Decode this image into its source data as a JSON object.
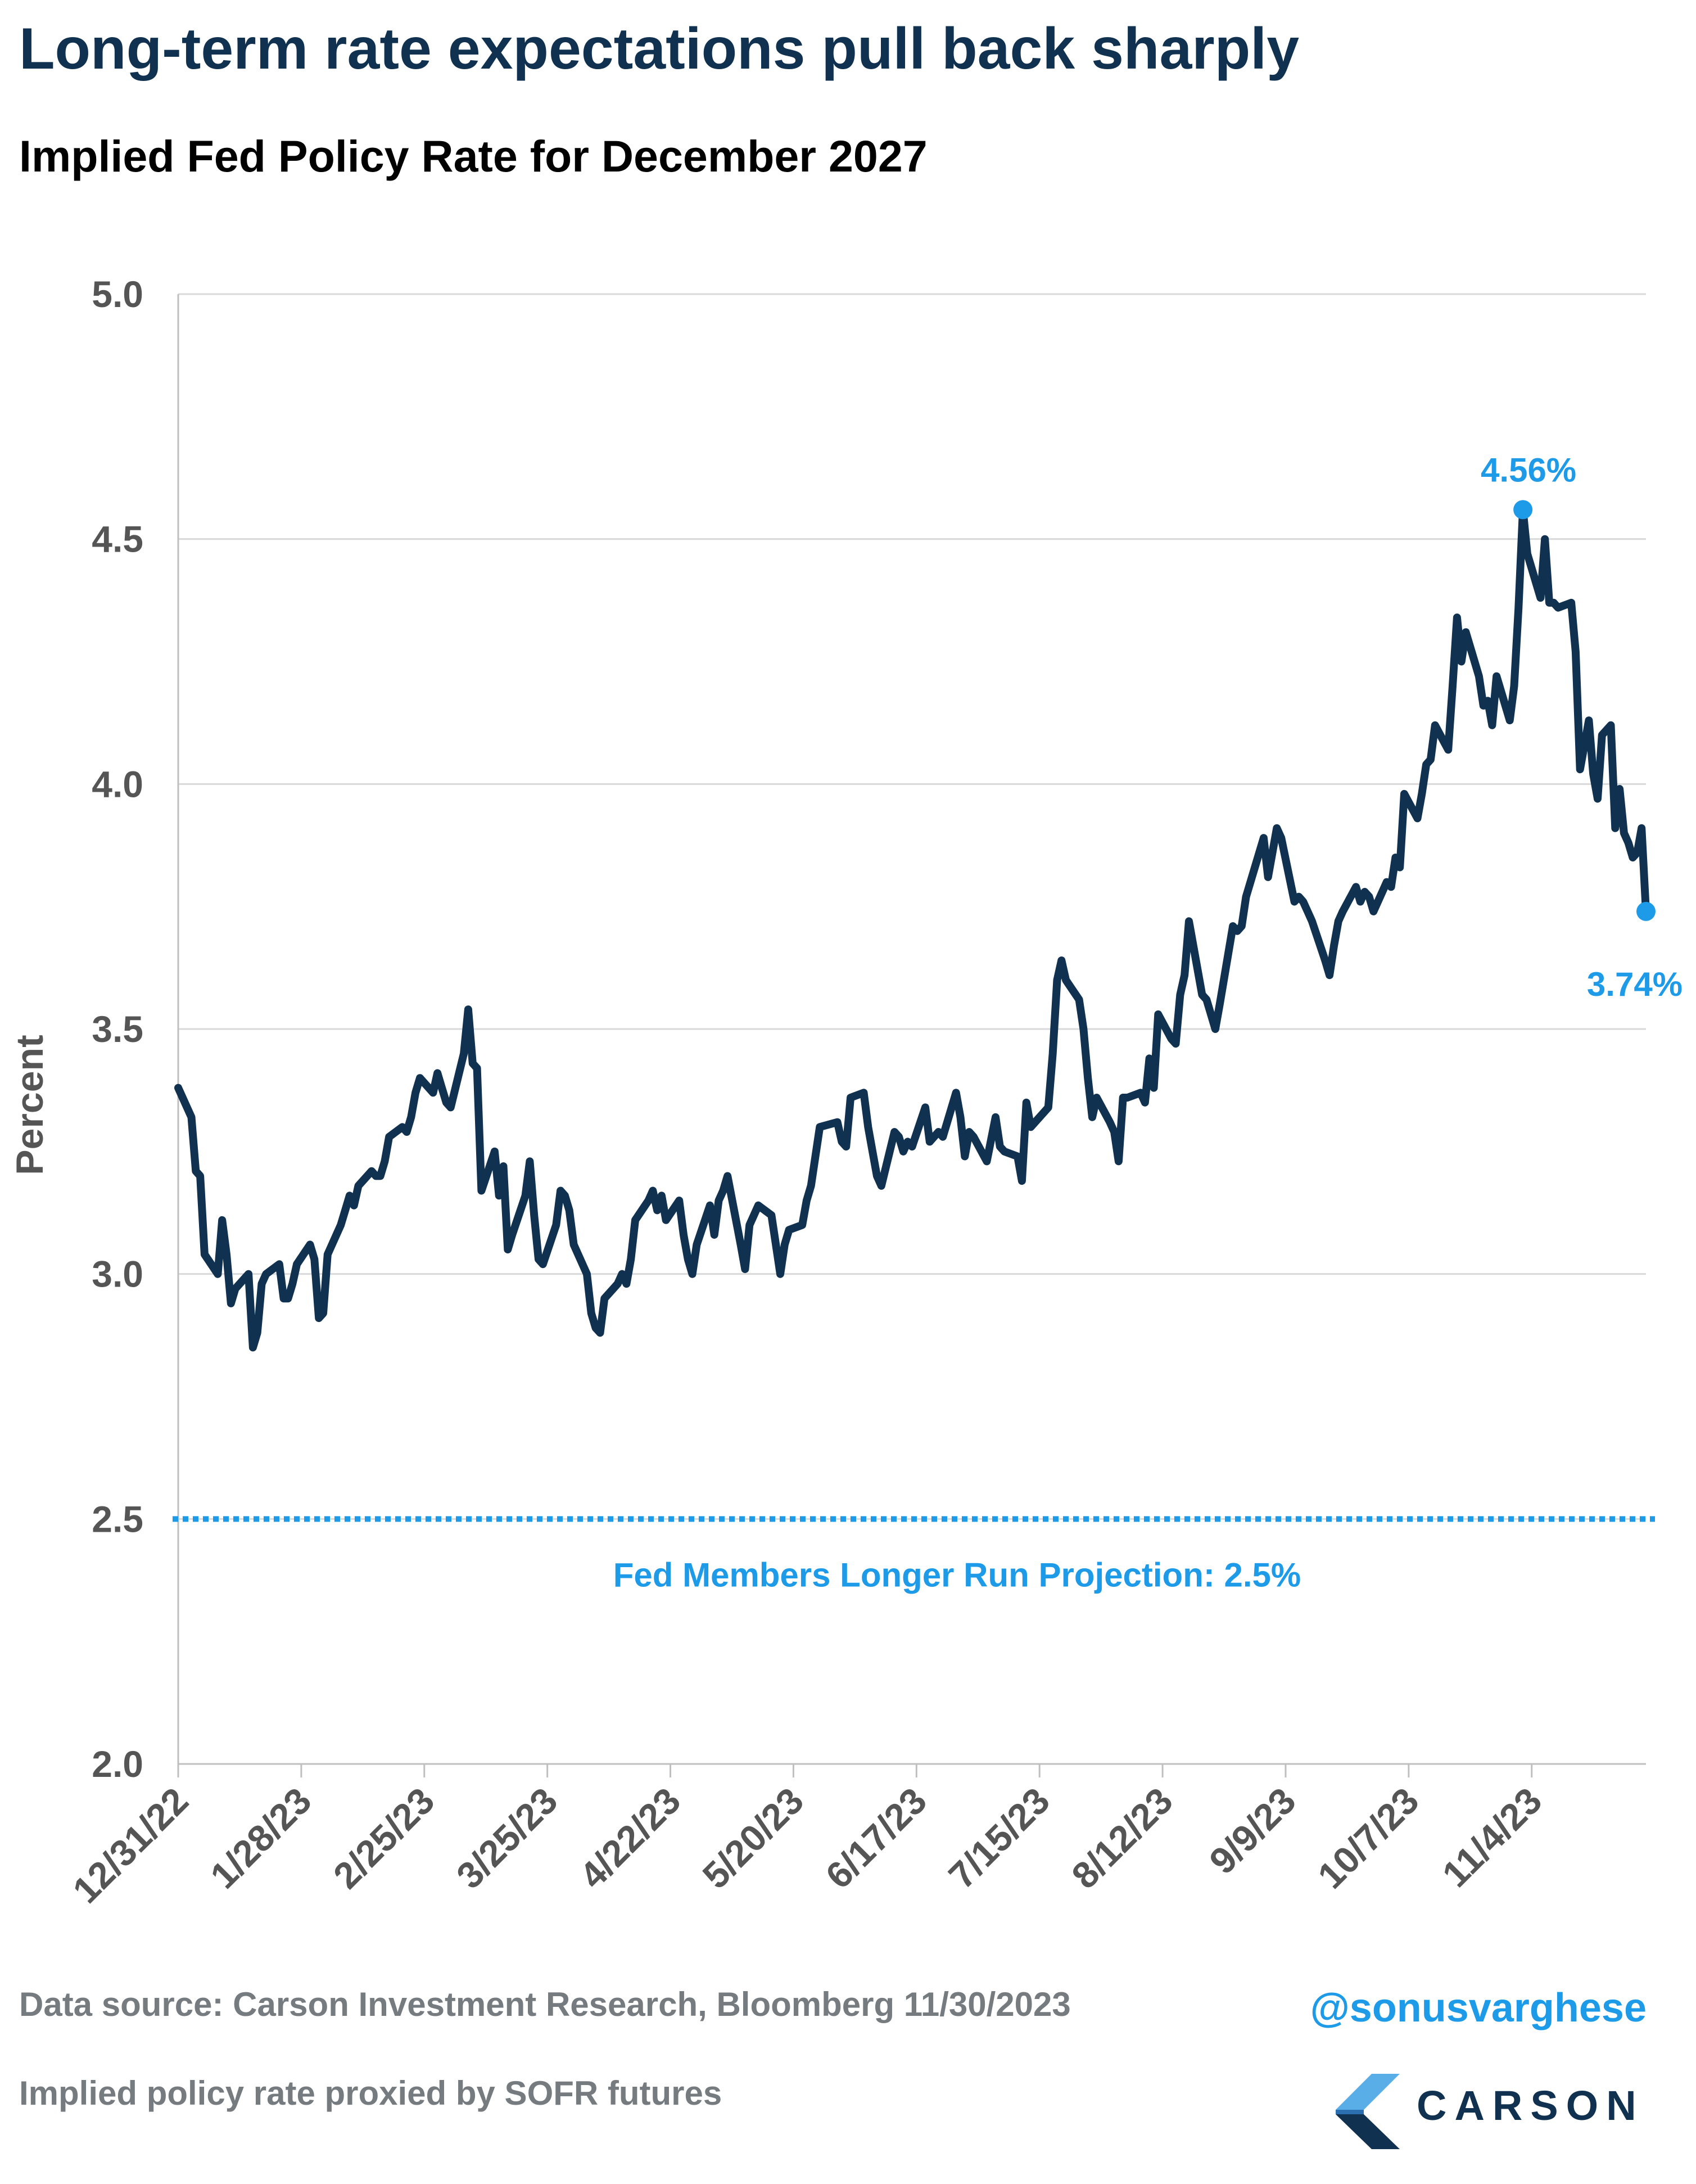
{
  "title": "Long-term rate expectations pull back sharply",
  "subtitle": "Implied Fed Policy Rate for December 2027",
  "footer": {
    "source": "Data source: Carson Investment Research, Bloomberg   11/30/2023",
    "note": "Implied policy rate proxied by SOFR futures",
    "handle": "@sonusvarghese",
    "logo_text": "CARSON"
  },
  "colors": {
    "line": "#10314f",
    "accent": "#1e9be8",
    "grid": "#d9d9d9",
    "title": "#10314f"
  },
  "chart_data": {
    "type": "line",
    "title": "Implied Fed Policy Rate for December 2027",
    "xlabel": "",
    "ylabel": "Percent",
    "ylim": [
      2.0,
      5.0
    ],
    "yticks": [
      "5.0",
      "4.5",
      "4.0",
      "3.5",
      "3.0",
      "2.5",
      "2.0"
    ],
    "x_tick_labels": [
      "12/31/22",
      "1/28/23",
      "2/25/23",
      "3/25/23",
      "4/22/23",
      "5/20/23",
      "6/17/23",
      "7/15/23",
      "8/12/23",
      "9/9/23",
      "10/7/23",
      "11/4/23"
    ],
    "x_start": "2022-12-31",
    "x_end": "2023-11-30",
    "grid": true,
    "series": [
      {
        "values": [
          [
            "2022-12-31",
            3.38
          ],
          [
            "2023-01-03",
            3.32
          ],
          [
            "2023-01-04",
            3.21
          ],
          [
            "2023-01-05",
            3.2
          ],
          [
            "2023-01-06",
            3.04
          ],
          [
            "2023-01-09",
            3.0
          ],
          [
            "2023-01-10",
            3.11
          ],
          [
            "2023-01-11",
            3.04
          ],
          [
            "2023-01-12",
            2.94
          ],
          [
            "2023-01-13",
            2.97
          ],
          [
            "2023-01-16",
            3.0
          ],
          [
            "2023-01-17",
            2.85
          ],
          [
            "2023-01-18",
            2.88
          ],
          [
            "2023-01-19",
            2.98
          ],
          [
            "2023-01-20",
            3.0
          ],
          [
            "2023-01-23",
            3.02
          ],
          [
            "2023-01-24",
            2.95
          ],
          [
            "2023-01-25",
            2.95
          ],
          [
            "2023-01-26",
            2.98
          ],
          [
            "2023-01-27",
            3.02
          ],
          [
            "2023-01-30",
            3.06
          ],
          [
            "2023-01-31",
            3.03
          ],
          [
            "2023-02-01",
            2.91
          ],
          [
            "2023-02-02",
            2.92
          ],
          [
            "2023-02-03",
            3.04
          ],
          [
            "2023-02-06",
            3.1
          ],
          [
            "2023-02-07",
            3.13
          ],
          [
            "2023-02-08",
            3.16
          ],
          [
            "2023-02-09",
            3.14
          ],
          [
            "2023-02-10",
            3.18
          ],
          [
            "2023-02-13",
            3.21
          ],
          [
            "2023-02-14",
            3.2
          ],
          [
            "2023-02-15",
            3.2
          ],
          [
            "2023-02-16",
            3.23
          ],
          [
            "2023-02-17",
            3.28
          ],
          [
            "2023-02-20",
            3.3
          ],
          [
            "2023-02-21",
            3.29
          ],
          [
            "2023-02-22",
            3.32
          ],
          [
            "2023-02-23",
            3.37
          ],
          [
            "2023-02-24",
            3.4
          ],
          [
            "2023-02-27",
            3.37
          ],
          [
            "2023-02-28",
            3.41
          ],
          [
            "2023-03-01",
            3.38
          ],
          [
            "2023-03-02",
            3.35
          ],
          [
            "2023-03-03",
            3.34
          ],
          [
            "2023-03-06",
            3.45
          ],
          [
            "2023-03-07",
            3.54
          ],
          [
            "2023-03-08",
            3.43
          ],
          [
            "2023-03-09",
            3.42
          ],
          [
            "2023-03-10",
            3.17
          ],
          [
            "2023-03-13",
            3.25
          ],
          [
            "2023-03-14",
            3.16
          ],
          [
            "2023-03-15",
            3.22
          ],
          [
            "2023-03-16",
            3.05
          ],
          [
            "2023-03-17",
            3.08
          ],
          [
            "2023-03-20",
            3.16
          ],
          [
            "2023-03-21",
            3.23
          ],
          [
            "2023-03-22",
            3.12
          ],
          [
            "2023-03-23",
            3.03
          ],
          [
            "2023-03-24",
            3.02
          ],
          [
            "2023-03-27",
            3.1
          ],
          [
            "2023-03-28",
            3.17
          ],
          [
            "2023-03-29",
            3.16
          ],
          [
            "2023-03-30",
            3.13
          ],
          [
            "2023-03-31",
            3.06
          ],
          [
            "2023-04-03",
            3.0
          ],
          [
            "2023-04-04",
            2.92
          ],
          [
            "2023-04-05",
            2.89
          ],
          [
            "2023-04-06",
            2.88
          ],
          [
            "2023-04-07",
            2.95
          ],
          [
            "2023-04-10",
            2.98
          ],
          [
            "2023-04-11",
            3.0
          ],
          [
            "2023-04-12",
            2.98
          ],
          [
            "2023-04-13",
            3.03
          ],
          [
            "2023-04-14",
            3.11
          ],
          [
            "2023-04-17",
            3.15
          ],
          [
            "2023-04-18",
            3.17
          ],
          [
            "2023-04-19",
            3.13
          ],
          [
            "2023-04-20",
            3.16
          ],
          [
            "2023-04-21",
            3.11
          ],
          [
            "2023-04-24",
            3.15
          ],
          [
            "2023-04-25",
            3.08
          ],
          [
            "2023-04-26",
            3.03
          ],
          [
            "2023-04-27",
            3.0
          ],
          [
            "2023-04-28",
            3.06
          ],
          [
            "2023-05-01",
            3.14
          ],
          [
            "2023-05-02",
            3.08
          ],
          [
            "2023-05-03",
            3.15
          ],
          [
            "2023-05-04",
            3.17
          ],
          [
            "2023-05-05",
            3.2
          ],
          [
            "2023-05-08",
            3.06
          ],
          [
            "2023-05-09",
            3.01
          ],
          [
            "2023-05-10",
            3.1
          ],
          [
            "2023-05-11",
            3.12
          ],
          [
            "2023-05-12",
            3.14
          ],
          [
            "2023-05-15",
            3.12
          ],
          [
            "2023-05-16",
            3.06
          ],
          [
            "2023-05-17",
            3.0
          ],
          [
            "2023-05-18",
            3.06
          ],
          [
            "2023-05-19",
            3.09
          ],
          [
            "2023-05-22",
            3.1
          ],
          [
            "2023-05-23",
            3.15
          ],
          [
            "2023-05-24",
            3.18
          ],
          [
            "2023-05-25",
            3.24
          ],
          [
            "2023-05-26",
            3.3
          ],
          [
            "2023-05-30",
            3.31
          ],
          [
            "2023-05-31",
            3.27
          ],
          [
            "2023-06-01",
            3.26
          ],
          [
            "2023-06-02",
            3.36
          ],
          [
            "2023-06-05",
            3.37
          ],
          [
            "2023-06-06",
            3.3
          ],
          [
            "2023-06-07",
            3.25
          ],
          [
            "2023-06-08",
            3.2
          ],
          [
            "2023-06-09",
            3.18
          ],
          [
            "2023-06-12",
            3.29
          ],
          [
            "2023-06-13",
            3.28
          ],
          [
            "2023-06-14",
            3.25
          ],
          [
            "2023-06-15",
            3.27
          ],
          [
            "2023-06-16",
            3.26
          ],
          [
            "2023-06-19",
            3.34
          ],
          [
            "2023-06-20",
            3.27
          ],
          [
            "2023-06-21",
            3.28
          ],
          [
            "2023-06-22",
            3.29
          ],
          [
            "2023-06-23",
            3.28
          ],
          [
            "2023-06-26",
            3.37
          ],
          [
            "2023-06-27",
            3.32
          ],
          [
            "2023-06-28",
            3.24
          ],
          [
            "2023-06-29",
            3.29
          ],
          [
            "2023-06-30",
            3.28
          ],
          [
            "2023-07-03",
            3.23
          ],
          [
            "2023-07-05",
            3.32
          ],
          [
            "2023-07-06",
            3.26
          ],
          [
            "2023-07-07",
            3.25
          ],
          [
            "2023-07-10",
            3.24
          ],
          [
            "2023-07-11",
            3.19
          ],
          [
            "2023-07-12",
            3.35
          ],
          [
            "2023-07-13",
            3.3
          ],
          [
            "2023-07-14",
            3.31
          ],
          [
            "2023-07-17",
            3.34
          ],
          [
            "2023-07-18",
            3.45
          ],
          [
            "2023-07-19",
            3.6
          ],
          [
            "2023-07-20",
            3.64
          ],
          [
            "2023-07-21",
            3.6
          ],
          [
            "2023-07-24",
            3.56
          ],
          [
            "2023-07-25",
            3.5
          ],
          [
            "2023-07-26",
            3.4
          ],
          [
            "2023-07-27",
            3.32
          ],
          [
            "2023-07-28",
            3.36
          ],
          [
            "2023-07-31",
            3.31
          ],
          [
            "2023-08-01",
            3.29
          ],
          [
            "2023-08-02",
            3.23
          ],
          [
            "2023-08-03",
            3.36
          ],
          [
            "2023-08-04",
            3.36
          ],
          [
            "2023-08-07",
            3.37
          ],
          [
            "2023-08-08",
            3.35
          ],
          [
            "2023-08-09",
            3.44
          ],
          [
            "2023-08-10",
            3.38
          ],
          [
            "2023-08-11",
            3.53
          ],
          [
            "2023-08-14",
            3.48
          ],
          [
            "2023-08-15",
            3.47
          ],
          [
            "2023-08-16",
            3.57
          ],
          [
            "2023-08-17",
            3.61
          ],
          [
            "2023-08-18",
            3.72
          ],
          [
            "2023-08-21",
            3.57
          ],
          [
            "2023-08-22",
            3.56
          ],
          [
            "2023-08-23",
            3.53
          ],
          [
            "2023-08-24",
            3.5
          ],
          [
            "2023-08-25",
            3.55
          ],
          [
            "2023-08-28",
            3.71
          ],
          [
            "2023-08-29",
            3.7
          ],
          [
            "2023-08-30",
            3.71
          ],
          [
            "2023-08-31",
            3.77
          ],
          [
            "2023-09-01",
            3.8
          ],
          [
            "2023-09-04",
            3.89
          ],
          [
            "2023-09-05",
            3.81
          ],
          [
            "2023-09-06",
            3.86
          ],
          [
            "2023-09-07",
            3.91
          ],
          [
            "2023-09-08",
            3.89
          ],
          [
            "2023-09-11",
            3.76
          ],
          [
            "2023-09-12",
            3.77
          ],
          [
            "2023-09-13",
            3.76
          ],
          [
            "2023-09-14",
            3.74
          ],
          [
            "2023-09-15",
            3.72
          ],
          [
            "2023-09-18",
            3.64
          ],
          [
            "2023-09-19",
            3.61
          ],
          [
            "2023-09-20",
            3.67
          ],
          [
            "2023-09-21",
            3.72
          ],
          [
            "2023-09-22",
            3.74
          ],
          [
            "2023-09-25",
            3.79
          ],
          [
            "2023-09-26",
            3.76
          ],
          [
            "2023-09-27",
            3.78
          ],
          [
            "2023-09-28",
            3.77
          ],
          [
            "2023-09-29",
            3.74
          ],
          [
            "2023-10-02",
            3.8
          ],
          [
            "2023-10-03",
            3.79
          ],
          [
            "2023-10-04",
            3.85
          ],
          [
            "2023-10-05",
            3.83
          ],
          [
            "2023-10-06",
            3.98
          ],
          [
            "2023-10-09",
            3.93
          ],
          [
            "2023-10-10",
            3.98
          ],
          [
            "2023-10-11",
            4.04
          ],
          [
            "2023-10-12",
            4.05
          ],
          [
            "2023-10-13",
            4.12
          ],
          [
            "2023-10-16",
            4.07
          ],
          [
            "2023-10-17",
            4.2
          ],
          [
            "2023-10-18",
            4.34
          ],
          [
            "2023-10-19",
            4.25
          ],
          [
            "2023-10-20",
            4.31
          ],
          [
            "2023-10-23",
            4.22
          ],
          [
            "2023-10-24",
            4.16
          ],
          [
            "2023-10-25",
            4.17
          ],
          [
            "2023-10-26",
            4.12
          ],
          [
            "2023-10-27",
            4.22
          ],
          [
            "2023-10-30",
            4.13
          ],
          [
            "2023-10-31",
            4.2
          ],
          [
            "2023-11-01",
            4.36
          ],
          [
            "2023-11-02",
            4.56
          ],
          [
            "2023-11-03",
            4.47
          ],
          [
            "2023-11-06",
            4.38
          ],
          [
            "2023-11-07",
            4.5
          ],
          [
            "2023-11-08",
            4.37
          ],
          [
            "2023-11-09",
            4.37
          ],
          [
            "2023-11-10",
            4.36
          ],
          [
            "2023-11-13",
            4.37
          ],
          [
            "2023-11-14",
            4.27
          ],
          [
            "2023-11-15",
            4.03
          ],
          [
            "2023-11-16",
            4.08
          ],
          [
            "2023-11-17",
            4.13
          ],
          [
            "2023-11-18",
            4.02
          ],
          [
            "2023-11-19",
            3.97
          ],
          [
            "2023-11-20",
            4.1
          ],
          [
            "2023-11-21",
            4.11
          ],
          [
            "2023-11-22",
            4.12
          ],
          [
            "2023-11-23",
            3.91
          ],
          [
            "2023-11-24",
            3.99
          ],
          [
            "2023-11-25",
            3.9
          ],
          [
            "2023-11-26",
            3.88
          ],
          [
            "2023-11-27",
            3.85
          ],
          [
            "2023-11-28",
            3.86
          ],
          [
            "2023-11-29",
            3.91
          ],
          [
            "2023-11-30",
            3.74
          ]
        ]
      }
    ],
    "reference_line": {
      "value": 2.5,
      "label": "Fed Members Longer Run Projection: 2.5%",
      "style": "dotted"
    },
    "annotations": [
      {
        "label": "4.56%",
        "x": "2023-11-02",
        "y": 4.56,
        "placement": "above"
      },
      {
        "label": "3.74%",
        "x": "2023-11-30",
        "y": 3.74,
        "placement": "below"
      }
    ]
  }
}
